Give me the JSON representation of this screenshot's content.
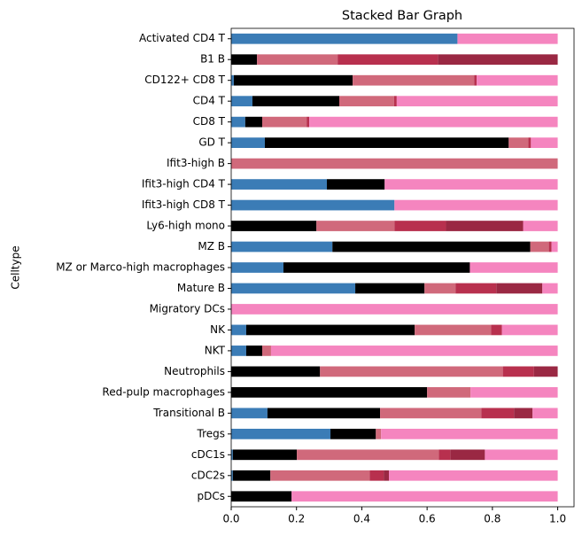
{
  "chart_data": {
    "type": "stacked-barh",
    "title": "Stacked Bar Graph",
    "y_label": "Celltype",
    "categories": [
      "Activated CD4 T",
      "B1 B",
      "CD122+ CD8 T",
      "CD4 T",
      "CD8 T",
      "GD T",
      "Ifit3-high B",
      "Ifit3-high CD4 T",
      "Ifit3-high CD8 T",
      "Ly6-high mono",
      "MZ B",
      "MZ or Marco-high macrophages",
      "Mature B",
      "Migratory DCs",
      "NK",
      "NKT",
      "Neutrophils",
      "Red-pulp macrophages",
      "Transitional B",
      "Tregs",
      "cDC1s",
      "cDC2s",
      "pDCs"
    ],
    "series": [
      {
        "color": "#3b7cb6",
        "values": [
          0.693,
          0,
          0.008,
          0.065,
          0.043,
          0.103,
          0,
          0.293,
          0.5,
          0,
          0.31,
          0.16,
          0.38,
          0,
          0.046,
          0.046,
          0,
          0,
          0.111,
          0.304,
          0.005,
          0.005,
          0
        ]
      },
      {
        "color": "#000000",
        "values": [
          0,
          0.079,
          0.364,
          0.266,
          0.052,
          0.747,
          0,
          0.177,
          0,
          0.261,
          0.606,
          0.571,
          0.212,
          0,
          0.516,
          0.049,
          0.272,
          0.6,
          0.345,
          0.139,
          0.196,
          0.115,
          0.185
        ]
      },
      {
        "color": "#d0697b",
        "values": [
          0,
          0.247,
          0.372,
          0.168,
          0.136,
          0.06,
          1.0,
          0,
          0,
          0.239,
          0.057,
          0,
          0.095,
          0,
          0.234,
          0.027,
          0.56,
          0.133,
          0.31,
          0.016,
          0.435,
          0.304,
          0
        ]
      },
      {
        "color": "#b8304e",
        "values": [
          0,
          0.307,
          0.008,
          0.008,
          0.008,
          0.008,
          0,
          0,
          0,
          0.158,
          0.008,
          0,
          0.125,
          0,
          0.033,
          0,
          0.095,
          0,
          0.1,
          0,
          0.035,
          0.043,
          0
        ]
      },
      {
        "color": "#9a2843",
        "values": [
          0,
          0.367,
          0,
          0,
          0,
          0,
          0,
          0,
          0,
          0.236,
          0,
          0,
          0.141,
          0,
          0,
          0,
          0.073,
          0,
          0.057,
          0,
          0.106,
          0.016,
          0
        ]
      },
      {
        "color": "#f585bf",
        "values": [
          0.307,
          0,
          0.248,
          0.493,
          0.761,
          0.082,
          0,
          0.53,
          0.5,
          0.106,
          0.019,
          0.269,
          0.047,
          1.0,
          0.171,
          0.878,
          0,
          0.267,
          0.077,
          0.541,
          0.223,
          0.517,
          0.815
        ]
      }
    ],
    "xlim": [
      0,
      1.05
    ],
    "xticks": [
      {
        "value": 0,
        "label": "0.0"
      },
      0.2,
      0.4,
      0.6,
      0.8,
      {
        "value": 1,
        "label": "1.0"
      }
    ]
  }
}
